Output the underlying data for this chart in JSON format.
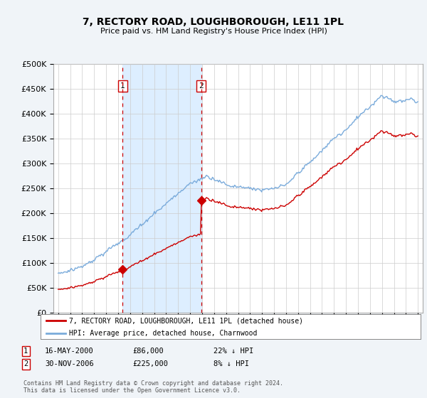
{
  "title": "7, RECTORY ROAD, LOUGHBOROUGH, LE11 1PL",
  "subtitle": "Price paid vs. HM Land Registry's House Price Index (HPI)",
  "legend_line1": "7, RECTORY ROAD, LOUGHBOROUGH, LE11 1PL (detached house)",
  "legend_line2": "HPI: Average price, detached house, Charnwood",
  "footnote": "Contains HM Land Registry data © Crown copyright and database right 2024.\nThis data is licensed under the Open Government Licence v3.0.",
  "sale1_label": "1",
  "sale1_date": "16-MAY-2000",
  "sale1_price": "£86,000",
  "sale1_hpi": "22% ↓ HPI",
  "sale2_label": "2",
  "sale2_date": "30-NOV-2006",
  "sale2_price": "£225,000",
  "sale2_hpi": "8% ↓ HPI",
  "sale_color": "#cc0000",
  "hpi_color": "#7aabdb",
  "shade_color": "#ddeeff",
  "background_color": "#f0f4f8",
  "plot_bg_color": "#ffffff",
  "grid_color": "#cccccc",
  "ylim": [
    0,
    500000
  ],
  "yticks": [
    0,
    50000,
    100000,
    150000,
    200000,
    250000,
    300000,
    350000,
    400000,
    450000,
    500000
  ],
  "sale1_x": 2000.37,
  "sale1_y": 86000,
  "sale2_x": 2006.92,
  "sale2_y": 225000,
  "xmin": 1995,
  "xmax": 2025
}
